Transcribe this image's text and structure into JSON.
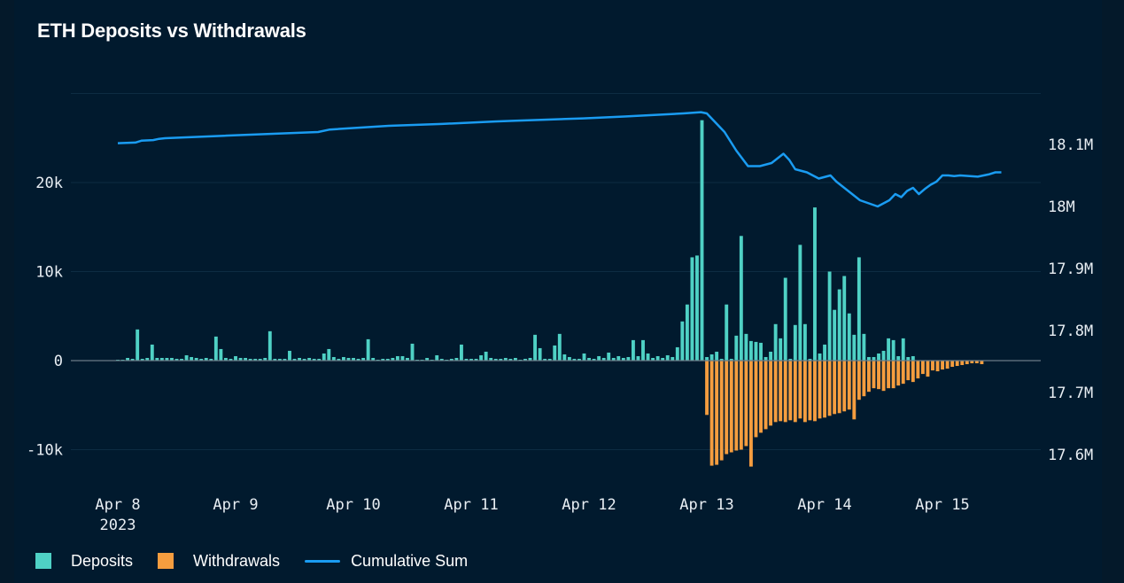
{
  "colors": {
    "deposits": "#4fd1c5",
    "withdrawals": "#f59d3f",
    "cumulative": "#1a9cf2",
    "grid": "#0d2c42",
    "zero": "#6b7b86"
  },
  "chart_data": {
    "type": "bar",
    "title": "ETH Deposits vs Withdrawals",
    "x_unit": "days since Apr 8 2023",
    "x_ticks": [
      {
        "x": 0,
        "label": "Apr 8",
        "sub": "2023"
      },
      {
        "x": 1,
        "label": "Apr 9",
        "sub": ""
      },
      {
        "x": 2,
        "label": "Apr 10",
        "sub": ""
      },
      {
        "x": 3,
        "label": "Apr 11",
        "sub": ""
      },
      {
        "x": 4,
        "label": "Apr 12",
        "sub": ""
      },
      {
        "x": 5,
        "label": "Apr 13",
        "sub": ""
      },
      {
        "x": 6,
        "label": "Apr 14",
        "sub": ""
      },
      {
        "x": 7,
        "label": "Apr 15",
        "sub": ""
      }
    ],
    "x_range": [
      -0.2,
      7.5
    ],
    "y_left": {
      "range": [
        -13000,
        30000
      ],
      "ticks": [
        {
          "v": -10000,
          "label": "-10k"
        },
        {
          "v": 0,
          "label": "0"
        },
        {
          "v": 10000,
          "label": "10k"
        },
        {
          "v": 20000,
          "label": "20k"
        }
      ]
    },
    "y_right": {
      "range": [
        17.54,
        18.15
      ],
      "ticks": [
        {
          "v": 17.6,
          "label": "17.6M"
        },
        {
          "v": 17.7,
          "label": "17.7M"
        },
        {
          "v": 17.8,
          "label": "17.8M"
        },
        {
          "v": 17.9,
          "label": "17.9M"
        },
        {
          "v": 18.0,
          "label": "18M"
        },
        {
          "v": 18.1,
          "label": "18.1M"
        }
      ]
    },
    "bar_step_days": 0.04167,
    "bar_start": 0.0,
    "series": [
      {
        "name": "Deposits",
        "values": [
          100,
          100,
          300,
          200,
          3500,
          200,
          300,
          1800,
          300,
          300,
          300,
          300,
          200,
          200,
          600,
          400,
          300,
          200,
          300,
          200,
          2700,
          1300,
          300,
          200,
          500,
          300,
          300,
          200,
          200,
          200,
          300,
          3300,
          200,
          200,
          200,
          1100,
          200,
          300,
          200,
          300,
          200,
          200,
          800,
          1300,
          400,
          200,
          400,
          300,
          300,
          200,
          300,
          2400,
          300,
          100,
          200,
          200,
          300,
          500,
          500,
          300,
          1900,
          100,
          100,
          300,
          100,
          600,
          200,
          100,
          200,
          300,
          1800,
          200,
          200,
          200,
          600,
          1000,
          300,
          200,
          200,
          300,
          200,
          300,
          100,
          200,
          300,
          2900,
          1400,
          200,
          200,
          1700,
          3000,
          700,
          400,
          200,
          200,
          800,
          300,
          200,
          500,
          300,
          900,
          300,
          500,
          300,
          400,
          2300,
          500,
          2300,
          800,
          300,
          500,
          300,
          600,
          400,
          1500,
          4400,
          6300,
          11600,
          11800,
          27000,
          400,
          700,
          1000,
          200,
          6300,
          200,
          2800,
          14000,
          3000,
          2200,
          2100,
          2000,
          400,
          1000,
          4100,
          2500,
          9300,
          200,
          4000,
          13000,
          4100,
          200,
          17200,
          800,
          1800,
          10000,
          5700,
          8000,
          9500,
          5300,
          2900,
          11600,
          3000,
          400,
          400,
          800,
          1100,
          2500,
          2300,
          500,
          2500,
          400,
          500
        ]
      },
      {
        "name": "Withdrawals",
        "values": [
          0,
          0,
          0,
          0,
          0,
          0,
          0,
          0,
          0,
          0,
          0,
          0,
          0,
          0,
          0,
          0,
          0,
          0,
          0,
          0,
          0,
          0,
          0,
          0,
          0,
          0,
          0,
          0,
          0,
          0,
          0,
          0,
          0,
          0,
          0,
          0,
          0,
          0,
          0,
          0,
          0,
          0,
          0,
          0,
          0,
          0,
          0,
          0,
          0,
          0,
          0,
          0,
          0,
          0,
          0,
          0,
          0,
          0,
          0,
          0,
          0,
          0,
          0,
          0,
          0,
          0,
          0,
          0,
          0,
          0,
          0,
          0,
          0,
          0,
          0,
          0,
          0,
          0,
          0,
          0,
          0,
          0,
          0,
          0,
          0,
          0,
          0,
          0,
          0,
          0,
          0,
          0,
          0,
          0,
          0,
          0,
          0,
          0,
          0,
          0,
          0,
          0,
          0,
          0,
          0,
          0,
          0,
          0,
          0,
          0,
          0,
          0,
          0,
          0,
          0,
          0,
          0,
          0,
          0,
          0,
          -6100,
          -11800,
          -11700,
          -11200,
          -10500,
          -10300,
          -10100,
          -10000,
          -9600,
          -11900,
          -8600,
          -8100,
          -7700,
          -7300,
          -6900,
          -6800,
          -6900,
          -6700,
          -6900,
          -6500,
          -6900,
          -6700,
          -6800,
          -6500,
          -6400,
          -6200,
          -6000,
          -5900,
          -5700,
          -5500,
          -6600,
          -4400,
          -4000,
          -3500,
          -3100,
          -3200,
          -3400,
          -3100,
          -3100,
          -2800,
          -2600,
          -2200,
          -2400,
          -2000,
          -1500,
          -1800,
          -1100,
          -1200,
          -1000,
          -900,
          -700,
          -600,
          -500,
          -400,
          -300,
          -300,
          -400
        ]
      },
      {
        "name": "Cumulative Sum",
        "axis": "right",
        "x": [
          0,
          0.15,
          0.2,
          0.3,
          0.35,
          0.4,
          0.9,
          1.7,
          1.8,
          2.3,
          2.75,
          3.2,
          3.35,
          3.8,
          3.95,
          4.3,
          4.5,
          4.8,
          4.95,
          5.0,
          5.15,
          5.25,
          5.35,
          5.45,
          5.55,
          5.65,
          5.7,
          5.75,
          5.85,
          5.95,
          6.05,
          6.1,
          6.2,
          6.3,
          6.45,
          6.55,
          6.6,
          6.65,
          6.7,
          6.75,
          6.8,
          6.85,
          6.9,
          6.95,
          7.0,
          7.05,
          7.1,
          7.15,
          7.3,
          7.4,
          7.45,
          7.5
        ],
        "values": [
          18.102,
          18.103,
          18.106,
          18.107,
          18.109,
          18.11,
          18.114,
          18.12,
          18.124,
          18.13,
          18.133,
          18.137,
          18.138,
          18.141,
          18.142,
          18.145,
          18.147,
          18.15,
          18.152,
          18.15,
          18.12,
          18.09,
          18.065,
          18.065,
          18.07,
          18.085,
          18.075,
          18.06,
          18.055,
          18.045,
          18.05,
          18.04,
          18.025,
          18.01,
          18.0,
          18.01,
          18.02,
          18.015,
          18.025,
          18.03,
          18.02,
          18.028,
          18.035,
          18.04,
          18.05,
          18.05,
          18.049,
          18.05,
          18.048,
          18.052,
          18.055,
          18.055
        ]
      }
    ],
    "legend_position": "bottom-left"
  },
  "legend": {
    "deposits": "Deposits",
    "withdrawals": "Withdrawals",
    "cumulative": "Cumulative Sum"
  }
}
